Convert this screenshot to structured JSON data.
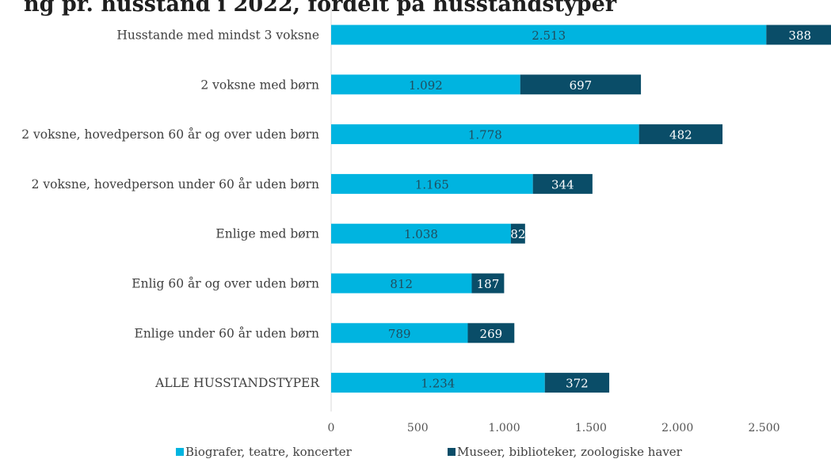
{
  "chart_data": {
    "type": "bar",
    "orientation": "horizontal",
    "stacked": true,
    "title": "",
    "title_partial": "ng pr. husstand i 2022, fordelt på husstandstyper",
    "categories": [
      "Husstande med mindst 3 voksne",
      "2 voksne med børn",
      "2 voksne, hovedperson 60 år og over uden børn",
      "2 voksne, hovedperson under 60 år uden børn",
      "Enlige med børn",
      "Enlig 60 år og over uden børn",
      "Enlige under 60 år uden børn",
      "ALLE HUSSTANDSTYPER"
    ],
    "series": [
      {
        "name": "Biografer, teatre, koncerter",
        "color": "#00b4e0",
        "label_color": "#1f4e5f",
        "values": [
          2513,
          1092,
          1778,
          1165,
          1038,
          812,
          789,
          1234
        ],
        "labels": [
          "2.513",
          "1.092",
          "1.778",
          "1.165",
          "1.038",
          "812",
          "789",
          "1.234"
        ]
      },
      {
        "name": "Museer, biblioteker, zoologiske haver",
        "color": "#0a4d68",
        "label_color": "#ffffff",
        "values": [
          388,
          697,
          482,
          344,
          82,
          187,
          269,
          372
        ],
        "labels": [
          "388",
          "697",
          "482",
          "344",
          "82",
          "187",
          "269",
          "372"
        ]
      }
    ],
    "xlim": [
      0,
      2900
    ],
    "xticks": [
      0,
      500,
      1000,
      1500,
      2000,
      2500
    ],
    "xtick_labels": [
      "0",
      "500",
      "1.000",
      "1.500",
      "2.000",
      "2.500"
    ],
    "legend_position": "bottom",
    "grid": false
  }
}
